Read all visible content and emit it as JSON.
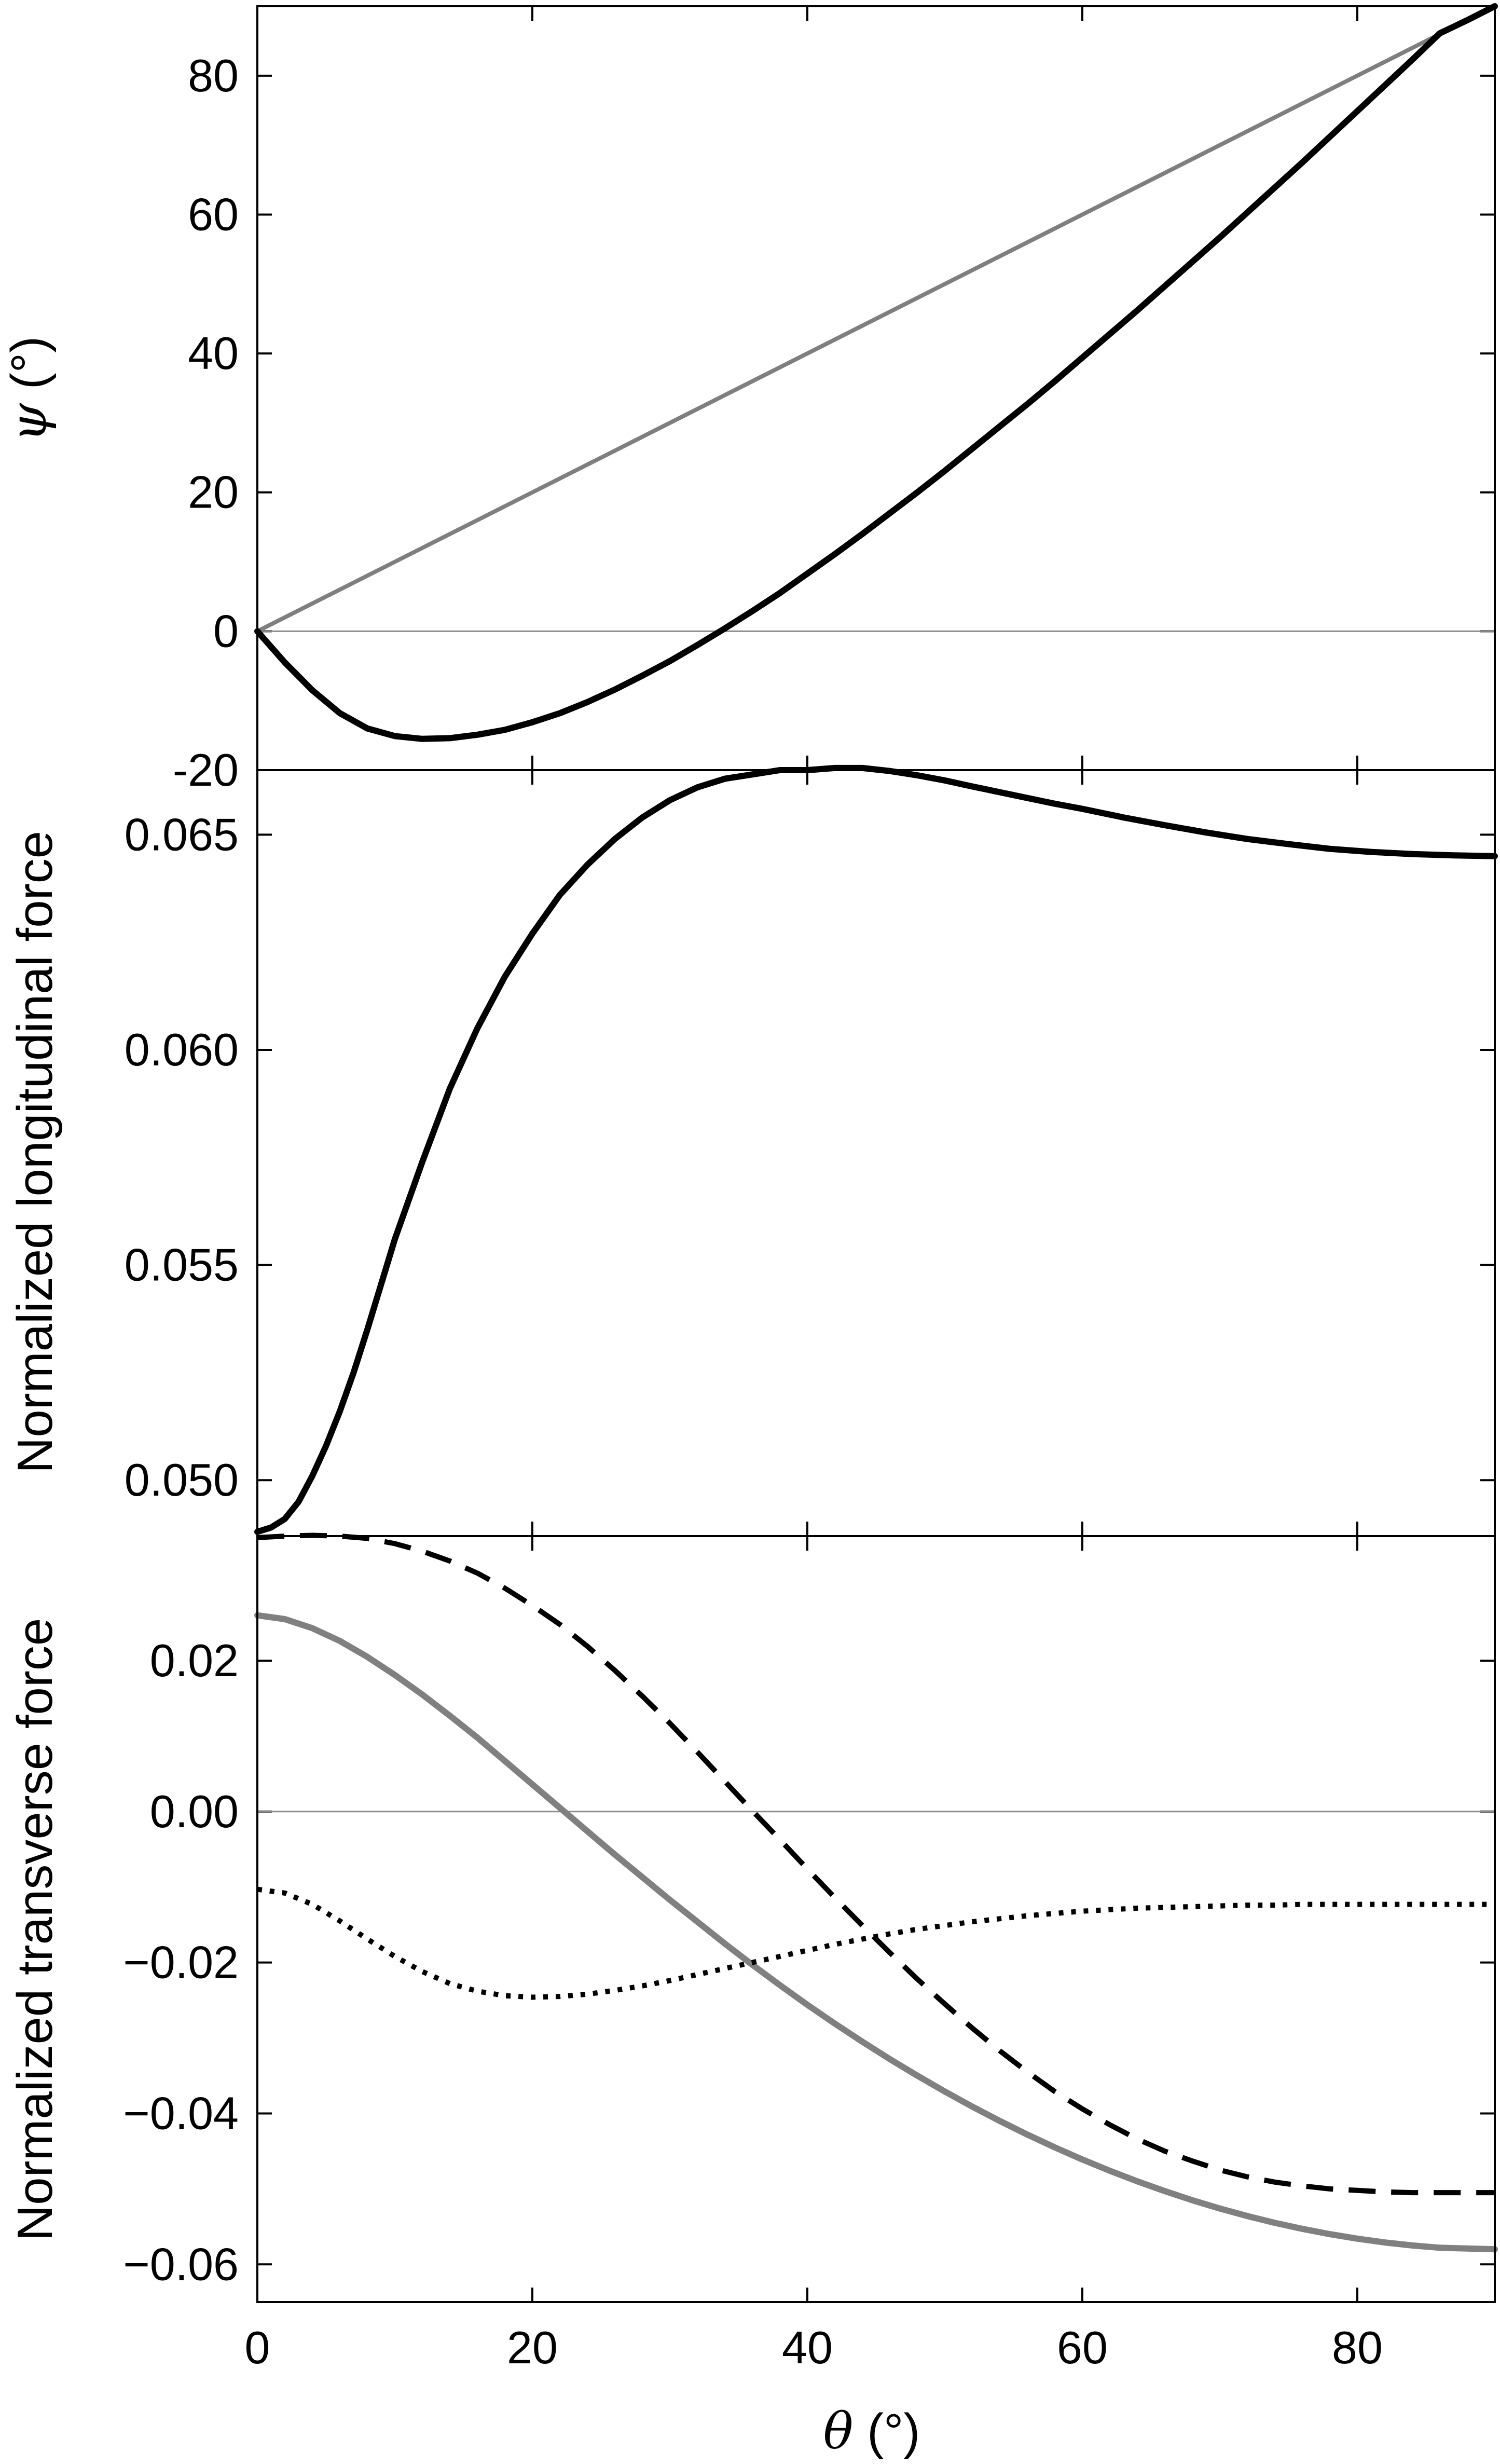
{
  "chart_data": [
    {
      "type": "line",
      "ylabel_symbol": "ψ",
      "ylabel_unit": " (°)",
      "xlim": [
        0,
        90
      ],
      "ylim": [
        -20,
        90
      ],
      "yticks": [
        80,
        60,
        40,
        20,
        0,
        -20
      ],
      "ytick_labels": [
        "80",
        "60",
        "40",
        "20",
        "0",
        "-20"
      ],
      "hline": 0,
      "grid": false,
      "series": [
        {
          "color": "#7f7f7f",
          "style": "solid",
          "points": [
            [
              0,
              0
            ],
            [
              90,
              90
            ]
          ]
        },
        {
          "color": "#000000",
          "style": "solid",
          "points": [
            [
              0,
              0
            ],
            [
              2,
              -4.5
            ],
            [
              4,
              -8.5
            ],
            [
              6,
              -11.8
            ],
            [
              8,
              -14.0
            ],
            [
              10,
              -15.1
            ],
            [
              12,
              -15.5
            ],
            [
              14,
              -15.4
            ],
            [
              16,
              -14.9
            ],
            [
              18,
              -14.2
            ],
            [
              20,
              -13.1
            ],
            [
              22,
              -11.8
            ],
            [
              24,
              -10.2
            ],
            [
              26,
              -8.4
            ],
            [
              28,
              -6.4
            ],
            [
              30,
              -4.3
            ],
            [
              32,
              -2.0
            ],
            [
              34,
              0.4
            ],
            [
              36,
              2.9
            ],
            [
              38,
              5.5
            ],
            [
              40,
              8.3
            ],
            [
              42,
              11.1
            ],
            [
              44,
              14.0
            ],
            [
              46,
              17.0
            ],
            [
              48,
              20.0
            ],
            [
              50,
              23.1
            ],
            [
              52,
              26.3
            ],
            [
              54,
              29.5
            ],
            [
              56,
              32.7
            ],
            [
              58,
              36.0
            ],
            [
              60,
              39.4
            ],
            [
              62,
              42.8
            ],
            [
              64,
              46.2
            ],
            [
              66,
              49.7
            ],
            [
              68,
              53.2
            ],
            [
              70,
              56.7
            ],
            [
              72,
              60.3
            ],
            [
              74,
              63.9
            ],
            [
              76,
              67.5
            ],
            [
              78,
              71.2
            ],
            [
              80,
              74.9
            ],
            [
              82,
              78.6
            ],
            [
              84,
              82.3
            ],
            [
              86,
              86.1
            ],
            [
              88,
              88.0
            ],
            [
              90,
              90
            ]
          ]
        }
      ]
    },
    {
      "type": "line",
      "ylabel": "Normalized longitudinal force",
      "xlim": [
        0,
        90
      ],
      "ylim": [
        0.0487,
        0.0665
      ],
      "yticks": [
        0.065,
        0.06,
        0.055,
        0.05
      ],
      "ytick_labels": [
        "0.065",
        "0.060",
        "0.055",
        "0.050"
      ],
      "grid": false,
      "series": [
        {
          "color": "#000000",
          "style": "solid",
          "points": [
            [
              0,
              0.0488
            ],
            [
              1,
              0.0489
            ],
            [
              2,
              0.0491
            ],
            [
              3,
              0.0495
            ],
            [
              4,
              0.0501
            ],
            [
              5,
              0.0508
            ],
            [
              6,
              0.0516
            ],
            [
              7,
              0.0525
            ],
            [
              8,
              0.0535
            ],
            [
              10,
              0.0556
            ],
            [
              12,
              0.0574
            ],
            [
              14,
              0.0591
            ],
            [
              16,
              0.0605
            ],
            [
              18,
              0.0617
            ],
            [
              20,
              0.0627
            ],
            [
              22,
              0.0636
            ],
            [
              24,
              0.0643
            ],
            [
              26,
              0.0649
            ],
            [
              28,
              0.0654
            ],
            [
              30,
              0.0658
            ],
            [
              32,
              0.0661
            ],
            [
              34,
              0.0663
            ],
            [
              36,
              0.0664
            ],
            [
              38,
              0.0665
            ],
            [
              40,
              0.0665
            ],
            [
              42,
              0.06655
            ],
            [
              44,
              0.06655
            ],
            [
              46,
              0.06648
            ],
            [
              48,
              0.06638
            ],
            [
              50,
              0.06626
            ],
            [
              52,
              0.06612
            ],
            [
              55,
              0.06592
            ],
            [
              58,
              0.06572
            ],
            [
              60,
              0.0656
            ],
            [
              63,
              0.0654
            ],
            [
              66,
              0.06522
            ],
            [
              69,
              0.06505
            ],
            [
              72,
              0.0649
            ],
            [
              75,
              0.06478
            ],
            [
              78,
              0.06467
            ],
            [
              81,
              0.0646
            ],
            [
              84,
              0.06455
            ],
            [
              87,
              0.06452
            ],
            [
              90,
              0.0645
            ]
          ]
        }
      ]
    },
    {
      "type": "line",
      "ylabel": "Normalized transverse force",
      "xlim": [
        0,
        90
      ],
      "ylim": [
        -0.065,
        0.0365
      ],
      "yticks": [
        0.02,
        0.0,
        -0.02,
        -0.04,
        -0.06
      ],
      "ytick_labels": [
        "0.02",
        "0.00",
        "−0.02",
        "−0.04",
        "−0.06"
      ],
      "xticks": [
        0,
        20,
        40,
        60,
        80
      ],
      "xtick_labels": [
        "0",
        "20",
        "40",
        "60",
        "80"
      ],
      "xlabel_symbol": "θ",
      "xlabel_unit": " (°)",
      "hline": 0,
      "grid": false,
      "series": [
        {
          "color": "#000000",
          "style": "dashed",
          "points": [
            [
              0,
              0.0363
            ],
            [
              2,
              0.0365
            ],
            [
              4,
              0.0366
            ],
            [
              6,
              0.0365
            ],
            [
              8,
              0.0362
            ],
            [
              10,
              0.0355
            ],
            [
              12,
              0.0345
            ],
            [
              14,
              0.0332
            ],
            [
              16,
              0.0316
            ],
            [
              18,
              0.0296
            ],
            [
              20,
              0.0273
            ],
            [
              22,
              0.0248
            ],
            [
              24,
              0.0219
            ],
            [
              26,
              0.0187
            ],
            [
              28,
              0.0153
            ],
            [
              30,
              0.0117
            ],
            [
              32,
              0.0079
            ],
            [
              34,
              0.004
            ],
            [
              36,
              0.0001
            ],
            [
              38,
              -0.0037
            ],
            [
              40,
              -0.0076
            ],
            [
              42,
              -0.0114
            ],
            [
              44,
              -0.0151
            ],
            [
              46,
              -0.0187
            ],
            [
              48,
              -0.0222
            ],
            [
              50,
              -0.0255
            ],
            [
              52,
              -0.0287
            ],
            [
              54,
              -0.0317
            ],
            [
              56,
              -0.0345
            ],
            [
              58,
              -0.0371
            ],
            [
              60,
              -0.0394
            ],
            [
              62,
              -0.0415
            ],
            [
              64,
              -0.0434
            ],
            [
              66,
              -0.045
            ],
            [
              68,
              -0.0463
            ],
            [
              70,
              -0.0475
            ],
            [
              72,
              -0.0484
            ],
            [
              74,
              -0.0491
            ],
            [
              76,
              -0.0496
            ],
            [
              78,
              -0.05
            ],
            [
              80,
              -0.0502
            ],
            [
              82,
              -0.0504
            ],
            [
              84,
              -0.0505
            ],
            [
              86,
              -0.0505
            ],
            [
              88,
              -0.0505
            ],
            [
              90,
              -0.0505
            ]
          ]
        },
        {
          "color": "#808080",
          "style": "solid",
          "points": [
            [
              0,
              0.026
            ],
            [
              2,
              0.0255
            ],
            [
              4,
              0.0243
            ],
            [
              6,
              0.0226
            ],
            [
              8,
              0.0205
            ],
            [
              10,
              0.0181
            ],
            [
              12,
              0.0155
            ],
            [
              14,
              0.0127
            ],
            [
              16,
              0.0098
            ],
            [
              18,
              0.0067
            ],
            [
              20,
              0.0036
            ],
            [
              22,
              0.0005
            ],
            [
              24,
              -0.0026
            ],
            [
              26,
              -0.0057
            ],
            [
              28,
              -0.0087
            ],
            [
              30,
              -0.0117
            ],
            [
              32,
              -0.0146
            ],
            [
              34,
              -0.0175
            ],
            [
              36,
              -0.0203
            ],
            [
              38,
              -0.023
            ],
            [
              40,
              -0.0256
            ],
            [
              42,
              -0.0281
            ],
            [
              44,
              -0.0305
            ],
            [
              46,
              -0.0328
            ],
            [
              48,
              -0.035
            ],
            [
              50,
              -0.0371
            ],
            [
              52,
              -0.0391
            ],
            [
              54,
              -0.041
            ],
            [
              56,
              -0.0428
            ],
            [
              58,
              -0.0445
            ],
            [
              60,
              -0.0461
            ],
            [
              62,
              -0.0476
            ],
            [
              64,
              -0.049
            ],
            [
              66,
              -0.0503
            ],
            [
              68,
              -0.0515
            ],
            [
              70,
              -0.0526
            ],
            [
              72,
              -0.0536
            ],
            [
              74,
              -0.0545
            ],
            [
              76,
              -0.0553
            ],
            [
              78,
              -0.056
            ],
            [
              80,
              -0.0566
            ],
            [
              82,
              -0.0571
            ],
            [
              84,
              -0.0575
            ],
            [
              86,
              -0.0578
            ],
            [
              88,
              -0.0579
            ],
            [
              90,
              -0.058
            ]
          ]
        },
        {
          "color": "#000000",
          "style": "dotted",
          "points": [
            [
              0,
              -0.0103
            ],
            [
              2,
              -0.0108
            ],
            [
              4,
              -0.0123
            ],
            [
              6,
              -0.0145
            ],
            [
              8,
              -0.0169
            ],
            [
              10,
              -0.0192
            ],
            [
              12,
              -0.0212
            ],
            [
              14,
              -0.0228
            ],
            [
              16,
              -0.0238
            ],
            [
              18,
              -0.0244
            ],
            [
              20,
              -0.0246
            ],
            [
              22,
              -0.0245
            ],
            [
              24,
              -0.0242
            ],
            [
              26,
              -0.0237
            ],
            [
              28,
              -0.0231
            ],
            [
              30,
              -0.0224
            ],
            [
              32,
              -0.0216
            ],
            [
              34,
              -0.0208
            ],
            [
              36,
              -0.02
            ],
            [
              38,
              -0.0192
            ],
            [
              40,
              -0.0184
            ],
            [
              42,
              -0.0176
            ],
            [
              44,
              -0.0169
            ],
            [
              46,
              -0.0162
            ],
            [
              48,
              -0.0156
            ],
            [
              50,
              -0.0151
            ],
            [
              52,
              -0.0146
            ],
            [
              54,
              -0.0142
            ],
            [
              56,
              -0.0138
            ],
            [
              58,
              -0.0135
            ],
            [
              60,
              -0.0132
            ],
            [
              62,
              -0.013
            ],
            [
              64,
              -0.0128
            ],
            [
              66,
              -0.0127
            ],
            [
              68,
              -0.0126
            ],
            [
              70,
              -0.0125
            ],
            [
              72,
              -0.0124
            ],
            [
              74,
              -0.0124
            ],
            [
              76,
              -0.0123
            ],
            [
              78,
              -0.0123
            ],
            [
              80,
              -0.0123
            ],
            [
              82,
              -0.0123
            ],
            [
              84,
              -0.0123
            ],
            [
              86,
              -0.0123
            ],
            [
              88,
              -0.0123
            ],
            [
              90,
              -0.0123
            ]
          ]
        }
      ]
    }
  ]
}
